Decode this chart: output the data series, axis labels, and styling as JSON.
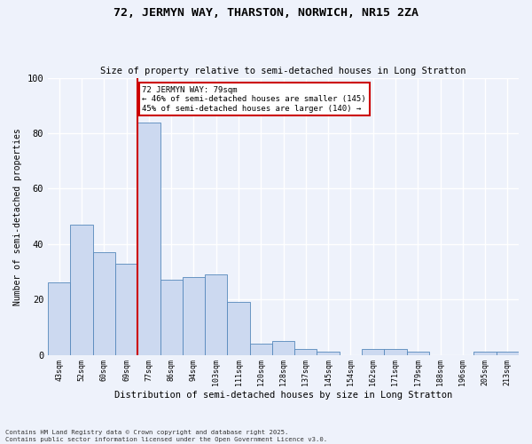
{
  "title": "72, JERMYN WAY, THARSTON, NORWICH, NR15 2ZA",
  "subtitle": "Size of property relative to semi-detached houses in Long Stratton",
  "xlabel": "Distribution of semi-detached houses by size in Long Stratton",
  "ylabel": "Number of semi-detached properties",
  "footnote": "Contains HM Land Registry data © Crown copyright and database right 2025.\nContains public sector information licensed under the Open Government Licence v3.0.",
  "categories": [
    "43sqm",
    "52sqm",
    "60sqm",
    "69sqm",
    "77sqm",
    "86sqm",
    "94sqm",
    "103sqm",
    "111sqm",
    "120sqm",
    "128sqm",
    "137sqm",
    "145sqm",
    "154sqm",
    "162sqm",
    "171sqm",
    "179sqm",
    "188sqm",
    "196sqm",
    "205sqm",
    "213sqm"
  ],
  "values": [
    26,
    47,
    37,
    33,
    84,
    27,
    28,
    29,
    19,
    4,
    5,
    2,
    1,
    0,
    2,
    2,
    1,
    0,
    0,
    1,
    1
  ],
  "highlight_index": 4,
  "bar_color": "#ccd9f0",
  "bar_edge_color": "#5588bb",
  "highlight_line_color": "#cc0000",
  "annotation_text": "72 JERMYN WAY: 79sqm\n← 46% of semi-detached houses are smaller (145)\n45% of semi-detached houses are larger (140) →",
  "annotation_box_color": "#ffffff",
  "annotation_box_edge": "#cc0000",
  "ylim": [
    0,
    100
  ],
  "yticks": [
    0,
    20,
    40,
    60,
    80,
    100
  ],
  "background_color": "#eef2fb",
  "plot_bg_color": "#eef2fb",
  "grid_color": "#ffffff"
}
